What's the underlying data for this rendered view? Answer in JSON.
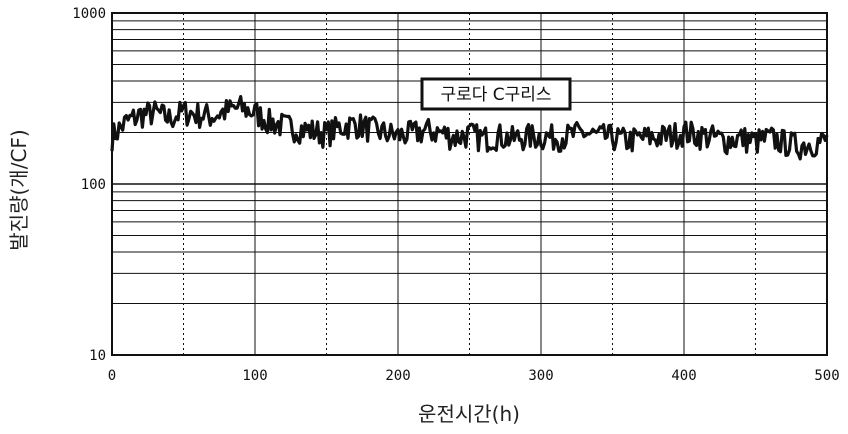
{
  "chart_data": {
    "type": "line",
    "title": "",
    "xlabel": "운전시간(h)",
    "ylabel": "발진량(개/CF)",
    "x_scale": "linear",
    "y_scale": "log",
    "xlim": [
      0,
      500
    ],
    "ylim": [
      10,
      1000
    ],
    "x_ticks": [
      "0",
      "100",
      "200",
      "300",
      "400",
      "500"
    ],
    "y_ticks": [
      "10",
      "100",
      "1000"
    ],
    "grid": true,
    "x_minor_grid_style": "dotted at 50, 150, 250, 350, 450",
    "y_minor_grid": "solid at 2-9 × each decade",
    "line_color": "#111111",
    "annotation": "구로다 C구리스",
    "x": [
      0,
      10,
      20,
      30,
      40,
      50,
      60,
      70,
      80,
      90,
      100,
      110,
      120,
      130,
      140,
      150,
      160,
      170,
      180,
      190,
      200,
      210,
      220,
      230,
      240,
      250,
      260,
      270,
      280,
      290,
      300,
      310,
      320,
      330,
      340,
      350,
      360,
      370,
      380,
      390,
      400,
      410,
      420,
      430,
      440,
      450,
      460,
      470,
      480,
      490,
      500
    ],
    "y": [
      190,
      230,
      255,
      262,
      242,
      265,
      256,
      250,
      268,
      280,
      262,
      232,
      220,
      212,
      205,
      198,
      216,
      225,
      212,
      200,
      192,
      198,
      206,
      200,
      188,
      196,
      185,
      192,
      184,
      190,
      190,
      188,
      192,
      200,
      190,
      188,
      180,
      186,
      188,
      192,
      202,
      194,
      188,
      180,
      186,
      178,
      186,
      176,
      168,
      174,
      180
    ]
  }
}
